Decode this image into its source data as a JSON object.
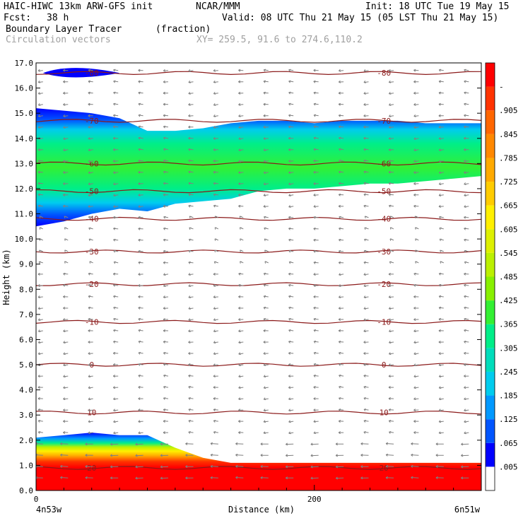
{
  "header": {
    "model": "HAIC-HIWC 13km ARW-GFS init",
    "org": "NCAR/MMM",
    "init": "Init: 18 UTC Tue 19 May 15",
    "fcst_label": "Fcst:",
    "fcst_value": "38 h",
    "valid": "Valid: 08 UTC Thu 21 May 15 (05 LST Thu 21 May 15)",
    "field_name": "Boundary Layer Tracer",
    "field_units": "(fraction)",
    "vector_name": "Circulation vectors",
    "xy": "XY= 259.5, 91.6 to 274.6,110.2"
  },
  "colors": {
    "contour": "#8b1a1a",
    "vector": "#808080",
    "scale": [
      "#ffffff",
      "#0000ff",
      "#0055ff",
      "#0099ff",
      "#00ccee",
      "#00ddbb",
      "#00ee88",
      "#33f033",
      "#88f000",
      "#bbf000",
      "#ddf000",
      "#fff000",
      "#ffcc00",
      "#ffaa00",
      "#ff8800",
      "#ff6600",
      "#ff3300",
      "#ff0000"
    ]
  },
  "chart_data": {
    "type": "heatmap",
    "title": "Boundary Layer Tracer",
    "units": "(fraction)",
    "xlabel": "Distance (km)",
    "ylabel": "Height (km)",
    "xlim": [
      0,
      320
    ],
    "ylim": [
      0,
      17
    ],
    "x_ticks": [
      0,
      200
    ],
    "y_ticks": [
      "0.0",
      "1.0",
      "2.0",
      "3.0",
      "4.0",
      "5.0",
      "6.0",
      "7.0",
      "8.0",
      "9.0",
      "10.0",
      "11.0",
      "12.0",
      "13.0",
      "14.0",
      "15.0",
      "16.0",
      "17.0"
    ],
    "x_endpoint_labels": [
      "4n53w",
      "6n51w"
    ],
    "colorbar_levels": [
      ".005",
      ".065",
      ".125",
      ".185",
      ".245",
      ".305",
      ".365",
      ".425",
      ".485",
      ".545",
      ".605",
      ".665",
      ".725",
      ".785",
      ".845",
      ".905",
      "-"
    ],
    "contour_field": "temperature",
    "contour_levels": [
      {
        "value": 20,
        "label": "20",
        "height_km": 0.9
      },
      {
        "value": 10,
        "label": "10",
        "height_km": 3.1
      },
      {
        "value": 0,
        "label": "0",
        "height_km": 5.0
      },
      {
        "value": -10,
        "label": "-10",
        "height_km": 6.7
      },
      {
        "value": -20,
        "label": "-20",
        "height_km": 8.2
      },
      {
        "value": -30,
        "label": "-30",
        "height_km": 9.5
      },
      {
        "value": -40,
        "label": "-40",
        "height_km": 10.8
      },
      {
        "value": -50,
        "label": "-50",
        "height_km": 11.9
      },
      {
        "value": -60,
        "label": "-60",
        "height_km": 13.0
      },
      {
        "value": -70,
        "label": "-70",
        "height_km": 14.7
      },
      {
        "value": -80,
        "label": "-80",
        "height_km": 16.6
      }
    ],
    "tracer_upper_layer": {
      "x": [
        0,
        20,
        40,
        60,
        80,
        100,
        120,
        140,
        160,
        180,
        200,
        220,
        240,
        260,
        280,
        300,
        320
      ],
      "bottom_km": [
        10.5,
        10.7,
        11.0,
        11.2,
        11.1,
        11.4,
        11.5,
        11.6,
        11.9,
        12.0,
        12.0,
        12.1,
        12.2,
        12.2,
        12.3,
        12.4,
        12.5
      ],
      "top_km": [
        15.2,
        15.1,
        15.0,
        14.8,
        14.3,
        14.3,
        14.4,
        14.6,
        14.7,
        14.7,
        14.6,
        14.7,
        14.7,
        14.7,
        14.6,
        14.6,
        14.6
      ]
    },
    "tracer_boundary_layer": {
      "x": [
        0,
        20,
        40,
        60,
        80,
        100,
        120,
        140,
        160,
        180,
        200,
        220,
        240,
        260,
        280,
        300,
        320
      ],
      "top_km": [
        2.1,
        2.2,
        2.3,
        2.2,
        2.2,
        1.7,
        1.3,
        1.1,
        1.1,
        1.1,
        1.1,
        1.1,
        1.1,
        1.1,
        1.1,
        1.1,
        1.1
      ]
    }
  }
}
